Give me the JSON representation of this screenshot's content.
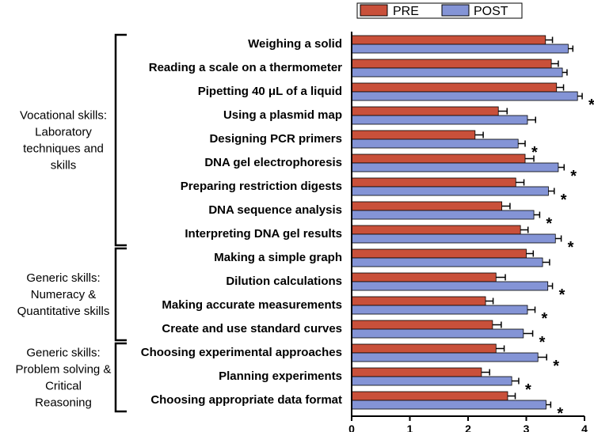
{
  "chart_data": {
    "type": "bar",
    "orientation": "horizontal",
    "categories": [
      "Weighing a solid",
      "Reading a scale on a thermometer",
      "Pipetting 40 μL of a liquid",
      "Using a plasmid map",
      "Designing PCR primers",
      "DNA gel electrophoresis",
      "Preparing restriction digests",
      "DNA sequence analysis",
      "Interpreting DNA gel results",
      "Making a simple graph",
      "Dilution calculations",
      "Making accurate measurements",
      "Create and use standard curves",
      "Choosing experimental approaches",
      "Planning experiments",
      "Choosing appropriate data format"
    ],
    "series": [
      {
        "name": "PRE",
        "color": "#c9503a",
        "values": [
          3.33,
          3.43,
          3.52,
          2.52,
          2.12,
          2.98,
          2.82,
          2.58,
          2.9,
          3.0,
          2.48,
          2.3,
          2.42,
          2.48,
          2.23,
          2.68
        ],
        "errors": [
          0.12,
          0.12,
          0.12,
          0.15,
          0.14,
          0.15,
          0.14,
          0.14,
          0.13,
          0.12,
          0.16,
          0.13,
          0.15,
          0.14,
          0.14,
          0.13
        ]
      },
      {
        "name": "POST",
        "color": "#8494d6",
        "values": [
          3.72,
          3.62,
          3.88,
          3.02,
          2.86,
          3.55,
          3.38,
          3.13,
          3.5,
          3.28,
          3.37,
          3.02,
          2.95,
          3.2,
          2.75,
          3.34
        ],
        "errors": [
          0.08,
          0.08,
          0.08,
          0.14,
          0.12,
          0.1,
          0.1,
          0.1,
          0.1,
          0.12,
          0.08,
          0.13,
          0.16,
          0.15,
          0.12,
          0.08
        ]
      }
    ],
    "significant": [
      false,
      false,
      true,
      false,
      true,
      true,
      true,
      true,
      true,
      false,
      true,
      true,
      true,
      true,
      true,
      true
    ],
    "significance_marker": "*",
    "groups": [
      {
        "label_lines": [
          "Vocational skills:",
          "Laboratory",
          "techniques and",
          "skills"
        ],
        "start": 0,
        "end": 8
      },
      {
        "label_lines": [
          "Generic skills:",
          "Numeracy &",
          "Quantitative skills"
        ],
        "start": 9,
        "end": 12
      },
      {
        "label_lines": [
          "Generic skills:",
          "Problem solving &",
          "Critical",
          "Reasoning"
        ],
        "start": 13,
        "end": 15
      }
    ],
    "x_ticks": [
      "0",
      "1",
      "2",
      "3",
      "4"
    ],
    "xlim": [
      0,
      4
    ],
    "legend_placement": "top-right",
    "title": "",
    "xlabel": "",
    "ylabel": ""
  }
}
